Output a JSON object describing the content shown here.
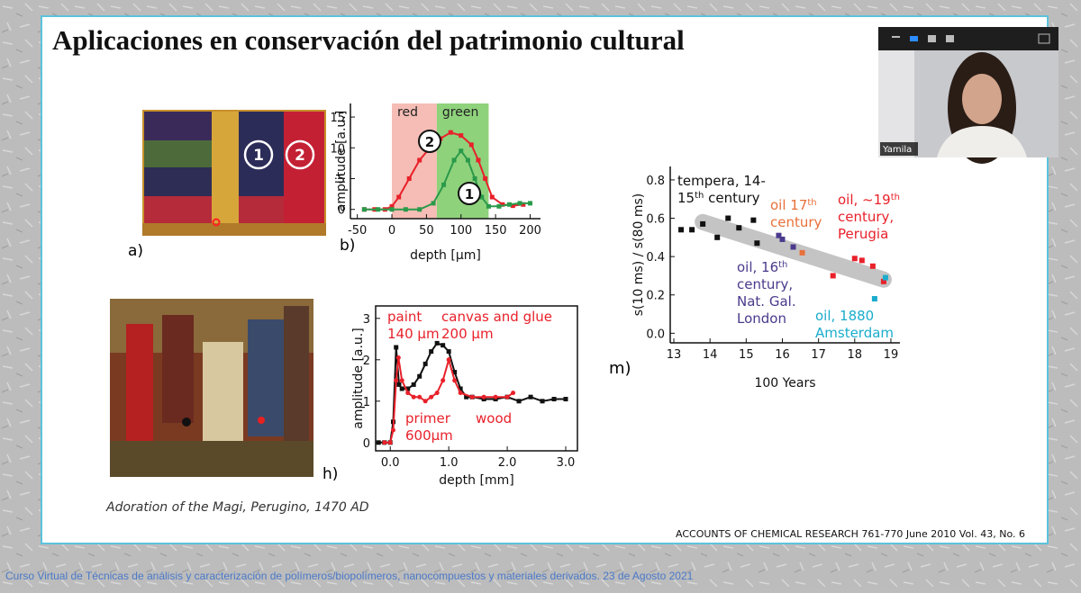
{
  "slide": {
    "title": "Aplicaciones en conservación del patrimonio cultural",
    "panel_labels": [
      "a)",
      "b)",
      "h)",
      "m)"
    ],
    "painting_labels": [
      "1",
      "2"
    ],
    "caption": "Adoration of the Magi, Perugino, 1470 AD",
    "citation": "ACCOUNTS OF CHEMICAL RESEARCH 761-770 June 2010 Vol. 43, No. 6"
  },
  "video": {
    "participant": "Yamila"
  },
  "footer": "Curso Virtual de Técnicas de análisis y caracterización de polímeros/biopolímeros, nanocompuestos y materiales derivados. 23 de Agosto 2021",
  "chart_data": [
    {
      "type": "line",
      "xlabel": "depth [μm]",
      "ylabel": "amplitude [a.u.]",
      "xlim": [
        -60,
        215
      ],
      "ylim": [
        -1.5,
        17.2
      ],
      "xticks": [
        -50,
        0,
        50,
        100,
        150,
        200
      ],
      "yticks": [
        0,
        5,
        10,
        15
      ],
      "regions": [
        {
          "label": "red",
          "color": "#f5bdb5",
          "x": [
            0,
            65
          ]
        },
        {
          "label": "green",
          "color": "#8fd27c",
          "x": [
            65,
            140
          ]
        }
      ],
      "annotations": [
        {
          "lines": [
            [
              "2"
            ]
          ],
          "color": "#111",
          "circled": true
        },
        {
          "lines": [
            [
              "1"
            ]
          ],
          "color": "#111",
          "circled": true
        }
      ],
      "series": [
        {
          "color": "#e8212a",
          "x": [
            -40,
            -25,
            -10,
            0,
            10,
            25,
            40,
            55,
            70,
            85,
            100,
            115,
            125,
            135,
            145,
            160,
            175,
            190
          ],
          "values": [
            0,
            0,
            0,
            0.5,
            2,
            5,
            8,
            10,
            11.5,
            12.5,
            12,
            10.5,
            8,
            5,
            2,
            0.8,
            0.6,
            0.8
          ]
        },
        {
          "color": "#2a9a4a",
          "x": [
            -40,
            -20,
            0,
            20,
            40,
            60,
            75,
            90,
            100,
            110,
            120,
            130,
            140,
            155,
            170,
            185,
            200
          ],
          "values": [
            0,
            0,
            0,
            0,
            0,
            1,
            4,
            8,
            9.5,
            8,
            5,
            2,
            0.5,
            0.5,
            0.8,
            1,
            1
          ]
        }
      ]
    },
    {
      "type": "line",
      "xlabel": "depth [mm]",
      "ylabel": "amplitude [a.u.]",
      "xlim": [
        -0.25,
        3.2
      ],
      "ylim": [
        -0.2,
        3.3
      ],
      "xticks": [
        {
          "value": 0,
          "label": "0.0"
        },
        {
          "value": 1,
          "label": "1.0"
        },
        {
          "value": 2,
          "label": "2.0"
        },
        {
          "value": 3,
          "label": "3.0"
        }
      ],
      "yticks": [
        0,
        1,
        2,
        3
      ],
      "annotations": [
        {
          "lines": [
            [
              "paint"
            ],
            [
              "140 μm"
            ]
          ],
          "color": "#e8212a"
        },
        {
          "lines": [
            [
              "canvas and glue"
            ],
            [
              "200 μm"
            ]
          ],
          "color": "#e8212a"
        },
        {
          "lines": [
            [
              "primer"
            ],
            [
              "600μm"
            ]
          ],
          "color": "#e8212a"
        },
        {
          "lines": [
            [
              "wood"
            ]
          ],
          "color": "#e8212a"
        }
      ],
      "series": [
        {
          "color": "#111111",
          "x": [
            -0.2,
            -0.1,
            0,
            0.05,
            0.1,
            0.15,
            0.2,
            0.3,
            0.4,
            0.5,
            0.6,
            0.7,
            0.8,
            0.9,
            1.0,
            1.1,
            1.2,
            1.3,
            1.4,
            1.6,
            1.8,
            2.0,
            2.2,
            2.4,
            2.6,
            2.8,
            3.0
          ],
          "values": [
            0,
            0,
            0,
            0.5,
            2.3,
            1.4,
            1.3,
            1.3,
            1.4,
            1.6,
            1.9,
            2.2,
            2.4,
            2.35,
            2.2,
            1.7,
            1.3,
            1.1,
            1.1,
            1.05,
            1.05,
            1.1,
            1.0,
            1.1,
            1.0,
            1.05,
            1.05
          ]
        },
        {
          "color": "#e8212a",
          "x": [
            -0.1,
            0,
            0.05,
            0.1,
            0.14,
            0.2,
            0.3,
            0.4,
            0.5,
            0.6,
            0.7,
            0.8,
            0.9,
            1.0,
            1.1,
            1.2,
            1.4,
            1.6,
            1.8,
            2.0,
            2.1
          ],
          "values": [
            0,
            0,
            0.3,
            1.5,
            2.05,
            1.5,
            1.2,
            1.1,
            1.1,
            1.0,
            1.1,
            1.2,
            1.5,
            2.0,
            1.5,
            1.2,
            1.1,
            1.1,
            1.1,
            1.1,
            1.2
          ]
        }
      ]
    },
    {
      "type": "scatter",
      "xlabel": "100   Years",
      "ylabel": "s(10 ms) / s(80 ms)",
      "xlim": [
        12.9,
        19.25
      ],
      "ylim": [
        -0.05,
        0.87
      ],
      "xticks": [
        13,
        14,
        15,
        16,
        17,
        18,
        19
      ],
      "yticks": [
        {
          "value": 0,
          "label": "0.0"
        },
        0.2,
        0.4,
        0.6,
        0.8
      ],
      "trend": {
        "color": "#c4c4c4",
        "x": [
          13.8,
          18.8
        ],
        "values": [
          0.58,
          0.28
        ]
      },
      "annotations": [
        {
          "lines": [
            [
              "tempera, 14-"
            ],
            [
              "15",
              "th",
              " century"
            ]
          ],
          "color": "#111"
        },
        {
          "lines": [
            [
              "oil 17",
              "th"
            ],
            [
              "century"
            ]
          ],
          "color": "#e8703a"
        },
        {
          "lines": [
            [
              "oil, ~19",
              "th"
            ],
            [
              "century,"
            ],
            [
              "Perugia"
            ]
          ],
          "color": "#e8212a"
        },
        {
          "lines": [
            [
              "oil, 16",
              "th"
            ],
            [
              "century,"
            ],
            [
              "Nat. Gal."
            ],
            [
              "London"
            ]
          ],
          "color": "#4b3a8c"
        },
        {
          "lines": [
            [
              "oil, 1880"
            ],
            [
              "Amsterdam"
            ]
          ],
          "color": "#1aaccc"
        }
      ],
      "series": [
        {
          "color": "#111111",
          "x": [
            13.2,
            13.5,
            13.8,
            14.2,
            14.5,
            14.8,
            15.2,
            15.3
          ],
          "values": [
            0.54,
            0.54,
            0.57,
            0.5,
            0.6,
            0.55,
            0.59,
            0.47
          ]
        },
        {
          "color": "#4b3a8c",
          "x": [
            15.9,
            16.0,
            16.3
          ],
          "values": [
            0.51,
            0.49,
            0.45
          ]
        },
        {
          "color": "#e8703a",
          "x": [
            16.55
          ],
          "values": [
            0.42
          ]
        },
        {
          "color": "#e8212a",
          "x": [
            17.4,
            18.0,
            18.2,
            18.5,
            18.8
          ],
          "values": [
            0.3,
            0.39,
            0.38,
            0.35,
            0.27
          ]
        },
        {
          "color": "#1aaccc",
          "x": [
            18.55,
            18.85
          ],
          "values": [
            0.18,
            0.29
          ]
        }
      ]
    }
  ]
}
